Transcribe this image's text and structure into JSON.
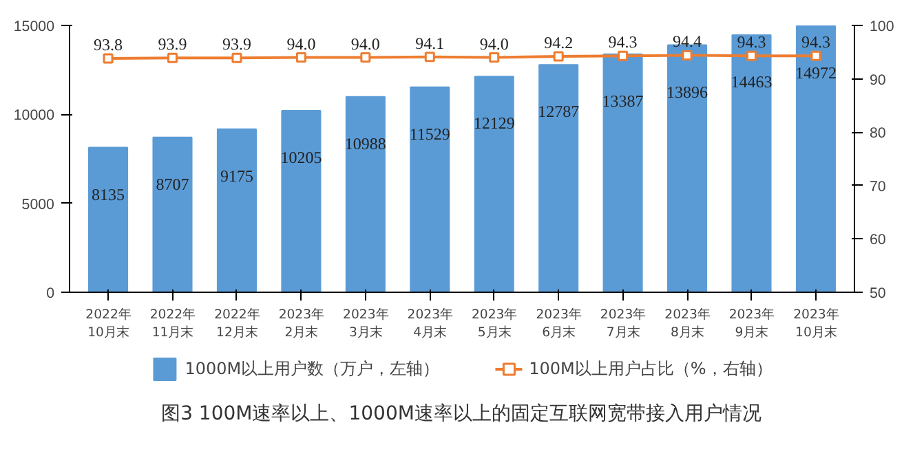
{
  "chart_data": {
    "type": "bar",
    "title": "图3   100M速率以上、1000M速率以上的固定互联网宽带接入用户情况",
    "categories": [
      "2022年\n10月末",
      "2022年\n11月末",
      "2022年\n12月末",
      "2023年\n2月末",
      "2023年\n3月末",
      "2023年\n4月末",
      "2023年\n5月末",
      "2023年\n6月末",
      "2023年\n7月末",
      "2023年\n8月末",
      "2023年\n9月末",
      "2023年\n10月末"
    ],
    "series": [
      {
        "name": "1000M以上用户数（万户，左轴）",
        "color": "#5b9bd5",
        "values": [
          8135,
          8707,
          9175,
          10205,
          10988,
          11529,
          12129,
          12787,
          13387,
          13896,
          14463,
          14972
        ]
      },
      {
        "name": "100M以上用户占比（%，右轴）",
        "type": "line",
        "axis": "y2",
        "color": "#ed7d31",
        "marker": "square",
        "values": [
          93.8,
          93.9,
          93.9,
          94.0,
          94.0,
          94.1,
          94.0,
          94.2,
          94.3,
          94.4,
          94.3,
          94.3
        ],
        "value_labels": [
          "93.8",
          "93.9",
          "93.9",
          "94.0",
          "94.0",
          "94.1",
          "94.0",
          "94.2",
          "94.3",
          "94.4",
          "94.3",
          "94.3"
        ]
      }
    ],
    "ylim": [
      0,
      15000
    ],
    "yticks": [
      0,
      5000,
      10000,
      15000
    ],
    "y2lim": [
      50,
      100
    ],
    "y2ticks": [
      50,
      60,
      70,
      80,
      90,
      100
    ],
    "data_labels": true,
    "legend": "bottom",
    "grid": false
  }
}
